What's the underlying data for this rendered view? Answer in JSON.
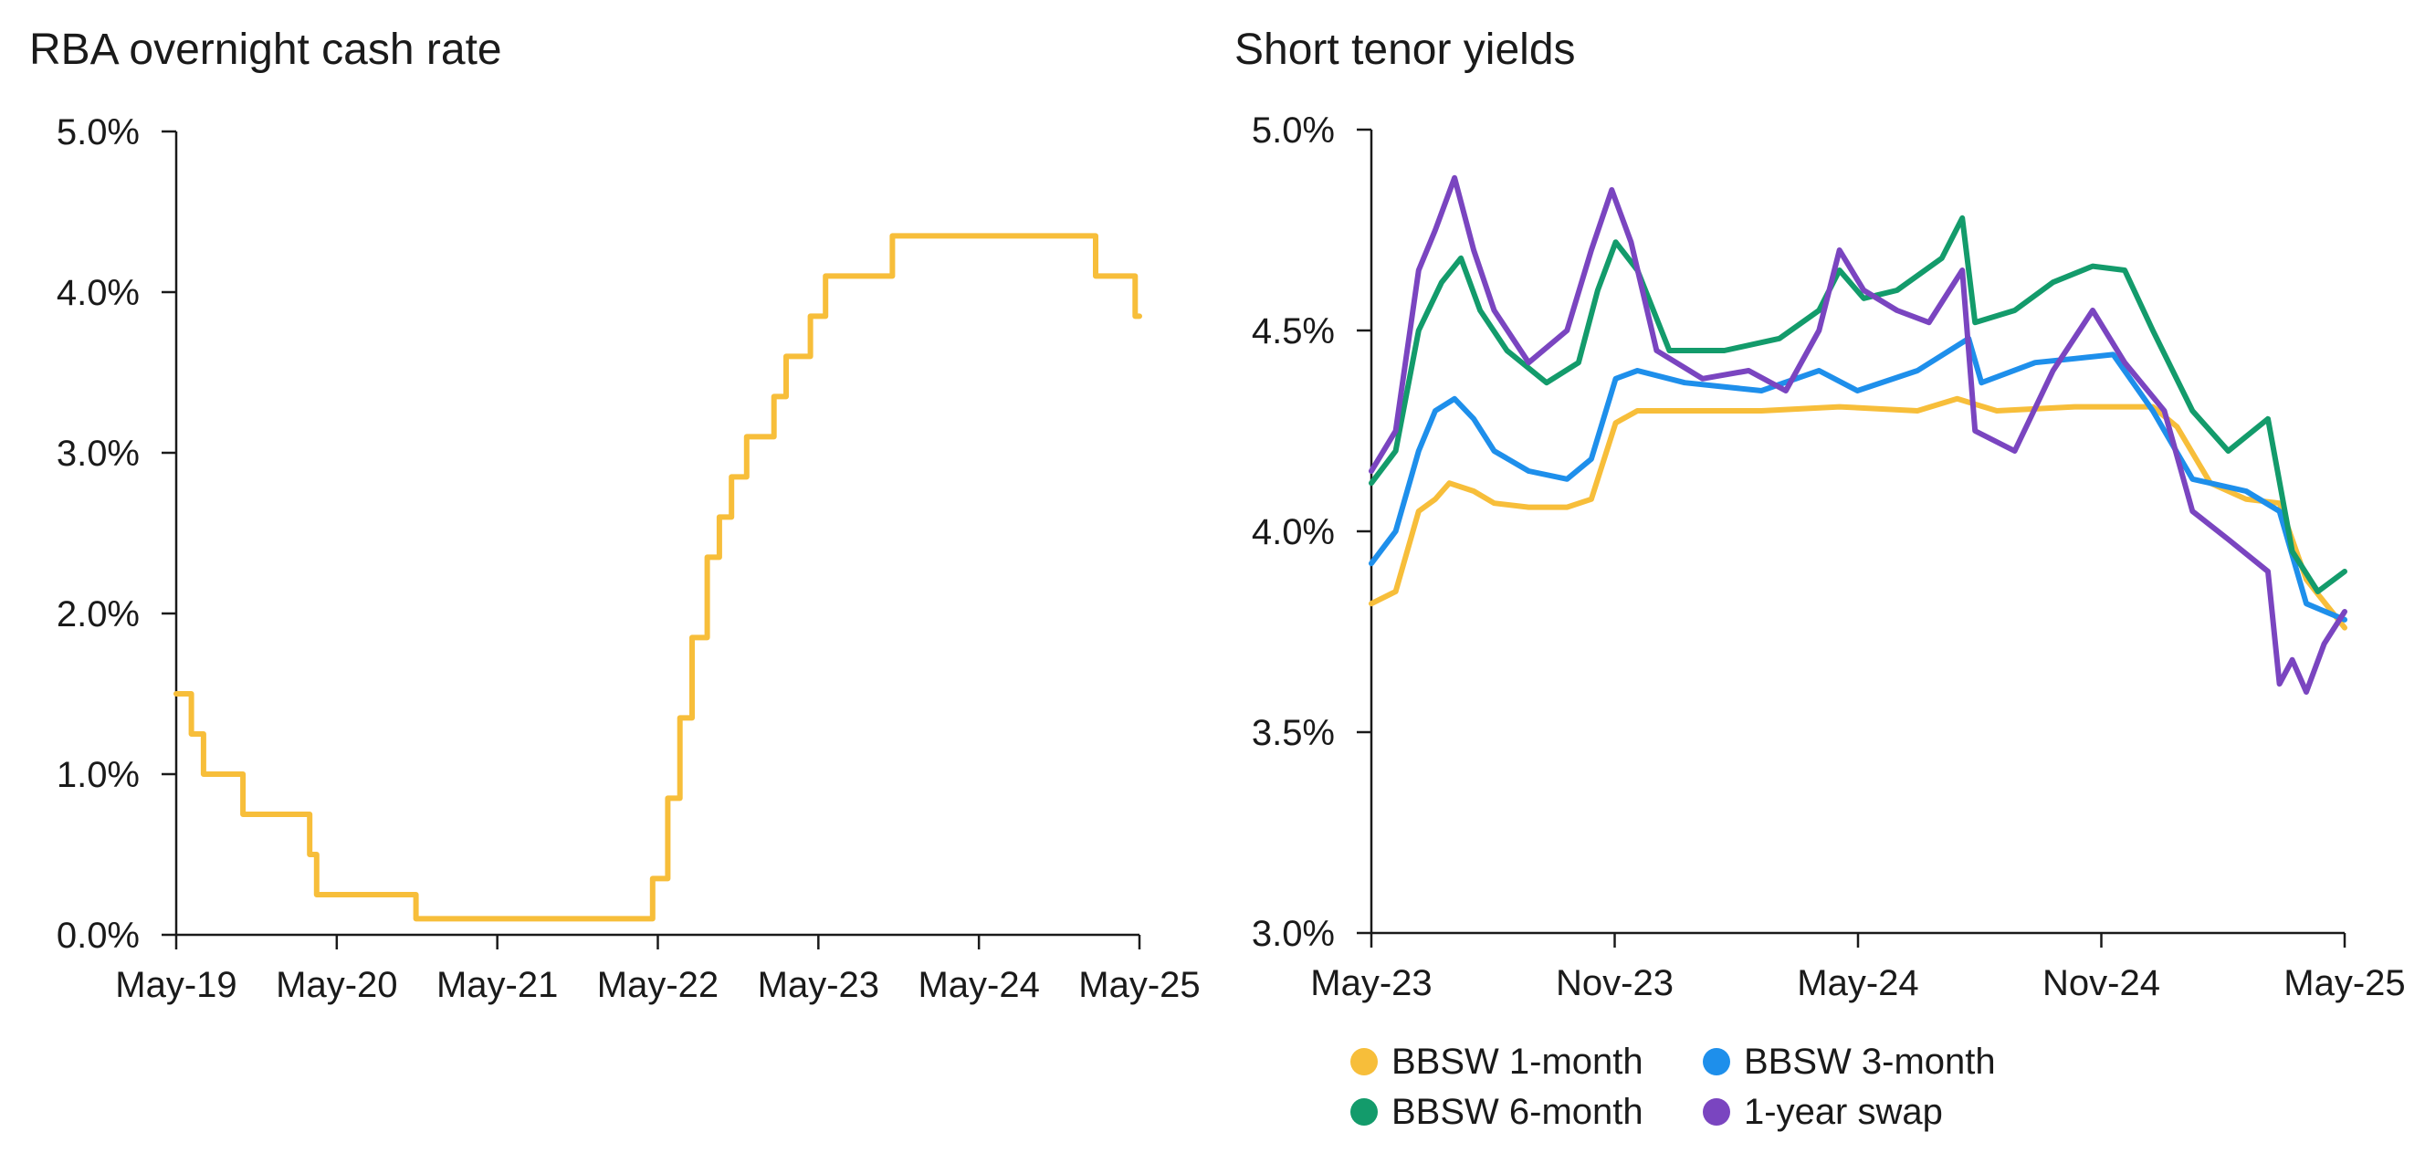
{
  "chart_data": [
    {
      "type": "line",
      "title": "RBA overnight cash rate",
      "xlabel": "",
      "ylabel": "",
      "x_ticks": [
        "May-19",
        "May-20",
        "May-21",
        "May-22",
        "May-23",
        "May-24",
        "May-25"
      ],
      "y_ticks": [
        "0.0%",
        "1.0%",
        "2.0%",
        "3.0%",
        "4.0%",
        "5.0%"
      ],
      "ylim": [
        0,
        5
      ],
      "xlim": [
        "2019-05-01",
        "2025-05-31"
      ],
      "grid": false,
      "series": [
        {
          "color": "#F7BE3A",
          "step": true,
          "points": [
            [
              "2019-05-01",
              1.5
            ],
            [
              "2019-06-05",
              1.25
            ],
            [
              "2019-07-03",
              1.0
            ],
            [
              "2019-10-02",
              0.75
            ],
            [
              "2020-03-04",
              0.5
            ],
            [
              "2020-03-20",
              0.25
            ],
            [
              "2020-11-04",
              0.1
            ],
            [
              "2022-05-04",
              0.35
            ],
            [
              "2022-06-08",
              0.85
            ],
            [
              "2022-07-06",
              1.35
            ],
            [
              "2022-08-03",
              1.85
            ],
            [
              "2022-09-07",
              2.35
            ],
            [
              "2022-10-05",
              2.6
            ],
            [
              "2022-11-02",
              2.85
            ],
            [
              "2022-12-07",
              3.1
            ],
            [
              "2023-02-08",
              3.35
            ],
            [
              "2023-03-08",
              3.6
            ],
            [
              "2023-05-03",
              3.85
            ],
            [
              "2023-06-07",
              4.1
            ],
            [
              "2023-11-08",
              4.35
            ],
            [
              "2025-02-19",
              4.1
            ],
            [
              "2025-05-21",
              3.85
            ],
            [
              "2025-05-31",
              3.85
            ]
          ]
        }
      ]
    },
    {
      "type": "line",
      "title": "Short tenor yields",
      "xlabel": "",
      "ylabel": "",
      "x_ticks": [
        "May-23",
        "Nov-23",
        "May-24",
        "Nov-24",
        "May-25"
      ],
      "y_ticks": [
        "3.0%",
        "3.5%",
        "4.0%",
        "4.5%",
        "5.0%"
      ],
      "ylim": [
        3.0,
        5.0
      ],
      "xlim": [
        "2023-05-01",
        "2025-05-31"
      ],
      "grid": false,
      "legend_position": "bottom",
      "series": [
        {
          "name": "BBSW 1-month",
          "color": "#F7BE3A",
          "points": [
            [
              "2023-05-01",
              3.82
            ],
            [
              "2023-05-20",
              3.85
            ],
            [
              "2023-06-07",
              4.05
            ],
            [
              "2023-06-20",
              4.08
            ],
            [
              "2023-07-01",
              4.12
            ],
            [
              "2023-07-20",
              4.1
            ],
            [
              "2023-08-05",
              4.07
            ],
            [
              "2023-09-01",
              4.06
            ],
            [
              "2023-10-01",
              4.06
            ],
            [
              "2023-10-20",
              4.08
            ],
            [
              "2023-11-08",
              4.27
            ],
            [
              "2023-11-25",
              4.3
            ],
            [
              "2024-01-01",
              4.3
            ],
            [
              "2024-03-01",
              4.3
            ],
            [
              "2024-05-01",
              4.31
            ],
            [
              "2024-07-01",
              4.3
            ],
            [
              "2024-08-01",
              4.33
            ],
            [
              "2024-09-01",
              4.3
            ],
            [
              "2024-11-01",
              4.31
            ],
            [
              "2025-01-01",
              4.31
            ],
            [
              "2025-01-20",
              4.26
            ],
            [
              "2025-02-15",
              4.12
            ],
            [
              "2025-03-15",
              4.08
            ],
            [
              "2025-04-10",
              4.07
            ],
            [
              "2025-05-01",
              3.88
            ],
            [
              "2025-05-31",
              3.76
            ]
          ]
        },
        {
          "name": "BBSW 3-month",
          "color": "#1E8FEB",
          "points": [
            [
              "2023-05-01",
              3.92
            ],
            [
              "2023-05-20",
              4.0
            ],
            [
              "2023-06-07",
              4.2
            ],
            [
              "2023-06-20",
              4.3
            ],
            [
              "2023-07-05",
              4.33
            ],
            [
              "2023-07-20",
              4.28
            ],
            [
              "2023-08-05",
              4.2
            ],
            [
              "2023-09-01",
              4.15
            ],
            [
              "2023-10-01",
              4.13
            ],
            [
              "2023-10-20",
              4.18
            ],
            [
              "2023-11-08",
              4.38
            ],
            [
              "2023-11-25",
              4.4
            ],
            [
              "2024-01-01",
              4.37
            ],
            [
              "2024-03-01",
              4.35
            ],
            [
              "2024-04-15",
              4.4
            ],
            [
              "2024-05-15",
              4.35
            ],
            [
              "2024-07-01",
              4.4
            ],
            [
              "2024-08-10",
              4.48
            ],
            [
              "2024-08-20",
              4.37
            ],
            [
              "2024-10-01",
              4.42
            ],
            [
              "2024-11-01",
              4.43
            ],
            [
              "2024-12-01",
              4.44
            ],
            [
              "2025-01-01",
              4.3
            ],
            [
              "2025-02-01",
              4.13
            ],
            [
              "2025-03-15",
              4.1
            ],
            [
              "2025-04-10",
              4.05
            ],
            [
              "2025-05-01",
              3.82
            ],
            [
              "2025-05-31",
              3.78
            ]
          ]
        },
        {
          "name": "BBSW 6-month",
          "color": "#139B6B",
          "points": [
            [
              "2023-05-01",
              4.12
            ],
            [
              "2023-05-20",
              4.2
            ],
            [
              "2023-06-07",
              4.5
            ],
            [
              "2023-06-25",
              4.62
            ],
            [
              "2023-07-10",
              4.68
            ],
            [
              "2023-07-25",
              4.55
            ],
            [
              "2023-08-15",
              4.45
            ],
            [
              "2023-09-15",
              4.37
            ],
            [
              "2023-10-10",
              4.42
            ],
            [
              "2023-10-25",
              4.6
            ],
            [
              "2023-11-08",
              4.72
            ],
            [
              "2023-11-25",
              4.65
            ],
            [
              "2023-12-20",
              4.45
            ],
            [
              "2024-02-01",
              4.45
            ],
            [
              "2024-03-15",
              4.48
            ],
            [
              "2024-04-15",
              4.55
            ],
            [
              "2024-05-01",
              4.65
            ],
            [
              "2024-05-20",
              4.58
            ],
            [
              "2024-06-15",
              4.6
            ],
            [
              "2024-07-20",
              4.68
            ],
            [
              "2024-08-05",
              4.78
            ],
            [
              "2024-08-15",
              4.52
            ],
            [
              "2024-09-15",
              4.55
            ],
            [
              "2024-10-15",
              4.62
            ],
            [
              "2024-11-15",
              4.66
            ],
            [
              "2024-12-10",
              4.65
            ],
            [
              "2025-01-01",
              4.5
            ],
            [
              "2025-02-01",
              4.3
            ],
            [
              "2025-03-01",
              4.2
            ],
            [
              "2025-04-01",
              4.28
            ],
            [
              "2025-04-20",
              3.95
            ],
            [
              "2025-05-10",
              3.85
            ],
            [
              "2025-05-31",
              3.9
            ]
          ]
        },
        {
          "name": "1-year swap",
          "color": "#7A45C0",
          "points": [
            [
              "2023-05-01",
              4.15
            ],
            [
              "2023-05-20",
              4.25
            ],
            [
              "2023-06-07",
              4.65
            ],
            [
              "2023-06-20",
              4.75
            ],
            [
              "2023-07-05",
              4.88
            ],
            [
              "2023-07-20",
              4.7
            ],
            [
              "2023-08-05",
              4.55
            ],
            [
              "2023-09-01",
              4.42
            ],
            [
              "2023-10-01",
              4.5
            ],
            [
              "2023-10-20",
              4.7
            ],
            [
              "2023-11-05",
              4.85
            ],
            [
              "2023-11-20",
              4.72
            ],
            [
              "2023-12-10",
              4.45
            ],
            [
              "2024-01-15",
              4.38
            ],
            [
              "2024-02-20",
              4.4
            ],
            [
              "2024-03-20",
              4.35
            ],
            [
              "2024-04-15",
              4.5
            ],
            [
              "2024-05-01",
              4.7
            ],
            [
              "2024-05-20",
              4.6
            ],
            [
              "2024-06-15",
              4.55
            ],
            [
              "2024-07-10",
              4.52
            ],
            [
              "2024-08-05",
              4.65
            ],
            [
              "2024-08-15",
              4.25
            ],
            [
              "2024-09-15",
              4.2
            ],
            [
              "2024-10-15",
              4.4
            ],
            [
              "2024-11-15",
              4.55
            ],
            [
              "2024-12-10",
              4.42
            ],
            [
              "2025-01-10",
              4.3
            ],
            [
              "2025-02-01",
              4.05
            ],
            [
              "2025-03-01",
              3.98
            ],
            [
              "2025-04-01",
              3.9
            ],
            [
              "2025-04-10",
              3.62
            ],
            [
              "2025-04-20",
              3.68
            ],
            [
              "2025-05-01",
              3.6
            ],
            [
              "2025-05-15",
              3.72
            ],
            [
              "2025-05-31",
              3.8
            ]
          ]
        }
      ]
    }
  ]
}
